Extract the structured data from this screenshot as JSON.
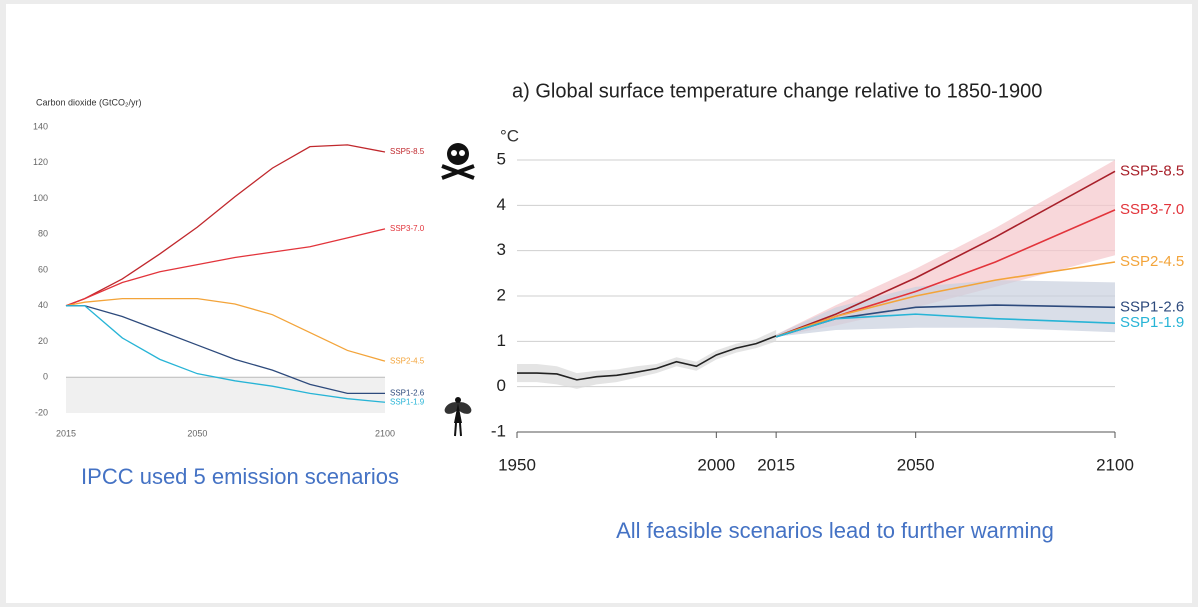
{
  "chart_data": [
    {
      "type": "line",
      "y_label": "Carbon dioxide (GtCO₂/yr)",
      "caption": "IPCC used 5 emission scenarios",
      "x": [
        2015,
        2020,
        2030,
        2040,
        2050,
        2060,
        2070,
        2080,
        2090,
        2100
      ],
      "xlim": [
        2015,
        2100
      ],
      "xticks": [
        2015,
        2050,
        2100
      ],
      "ylim": [
        -20,
        140
      ],
      "yticks": [
        -20,
        0,
        20,
        40,
        60,
        80,
        100,
        120,
        140
      ],
      "series": [
        {
          "name": "SSP5-8.5",
          "color": "#c0282d",
          "values": [
            40,
            44,
            55,
            69,
            84,
            101,
            117,
            129,
            130,
            126
          ]
        },
        {
          "name": "SSP3-7.0",
          "color": "#e2343b",
          "values": [
            40,
            44,
            53,
            59,
            63,
            67,
            70,
            73,
            78,
            83
          ]
        },
        {
          "name": "SSP2-4.5",
          "color": "#f3a43a",
          "values": [
            40,
            42,
            44,
            44,
            44,
            41,
            35,
            25,
            15,
            9
          ]
        },
        {
          "name": "SSP1-2.6",
          "color": "#2d4a7c",
          "values": [
            40,
            40,
            34,
            26,
            18,
            10,
            4,
            -4,
            -9,
            -9
          ]
        },
        {
          "name": "SSP1-1.9",
          "color": "#27b4d6",
          "values": [
            40,
            40,
            22,
            10,
            2,
            -2,
            -5,
            -9,
            -12,
            -14
          ]
        }
      ]
    },
    {
      "type": "line",
      "title": "a) Global surface temperature change relative to 1850-1900",
      "y_label": "°C",
      "caption": "All feasible scenarios lead to further warming",
      "xlim": [
        1950,
        2100
      ],
      "xticks": [
        1950,
        2000,
        2015,
        2050,
        2100
      ],
      "ylim": [
        -1,
        5
      ],
      "yticks": [
        -1,
        0,
        1,
        2,
        3,
        4,
        5
      ],
      "grid": true,
      "series": [
        {
          "color": "#222222",
          "band_color": "#d9d9d9",
          "x": [
            1950,
            1955,
            1960,
            1965,
            1970,
            1975,
            1980,
            1985,
            1990,
            1995,
            2000,
            2005,
            2010,
            2015
          ],
          "values": [
            0.3,
            0.3,
            0.28,
            0.15,
            0.22,
            0.25,
            0.32,
            0.4,
            0.55,
            0.45,
            0.7,
            0.85,
            0.95,
            1.12
          ],
          "low": [
            0.1,
            0.1,
            0.05,
            -0.05,
            0.05,
            0.1,
            0.2,
            0.3,
            0.45,
            0.35,
            0.6,
            0.75,
            0.85,
            1.0
          ],
          "high": [
            0.5,
            0.5,
            0.45,
            0.3,
            0.35,
            0.38,
            0.45,
            0.5,
            0.65,
            0.55,
            0.8,
            0.95,
            1.05,
            1.25
          ]
        },
        {
          "name": "SSP3-7.0",
          "color": "#e2343b",
          "band_color": "#f5c6ca",
          "x": [
            2015,
            2030,
            2050,
            2070,
            2100
          ],
          "values": [
            1.1,
            1.55,
            2.1,
            2.75,
            3.9
          ],
          "low": [
            1.1,
            1.35,
            1.75,
            2.2,
            2.9
          ],
          "high": [
            1.15,
            1.8,
            2.6,
            3.5,
            5.0
          ]
        },
        {
          "name": "SSP1-2.6",
          "color": "#2d4a7c",
          "band_color": "#c9d0de",
          "x": [
            2015,
            2030,
            2050,
            2070,
            2100
          ],
          "values": [
            1.1,
            1.5,
            1.75,
            1.8,
            1.75
          ],
          "low": [
            1.1,
            1.25,
            1.3,
            1.3,
            1.2
          ],
          "high": [
            1.15,
            1.75,
            2.2,
            2.35,
            2.3
          ]
        },
        {
          "name": "SSP5-8.5",
          "color": "#a8202a",
          "x": [
            2015,
            2030,
            2050,
            2070,
            2100
          ],
          "values": [
            1.1,
            1.6,
            2.4,
            3.3,
            4.75
          ]
        },
        {
          "name": "SSP2-4.5",
          "color": "#f3a43a",
          "x": [
            2015,
            2030,
            2050,
            2070,
            2100
          ],
          "values": [
            1.1,
            1.55,
            2.0,
            2.35,
            2.75
          ]
        },
        {
          "name": "SSP1-1.9",
          "color": "#27b4d6",
          "x": [
            2015,
            2030,
            2050,
            2070,
            2100
          ],
          "values": [
            1.1,
            1.5,
            1.6,
            1.5,
            1.4
          ]
        }
      ]
    }
  ]
}
